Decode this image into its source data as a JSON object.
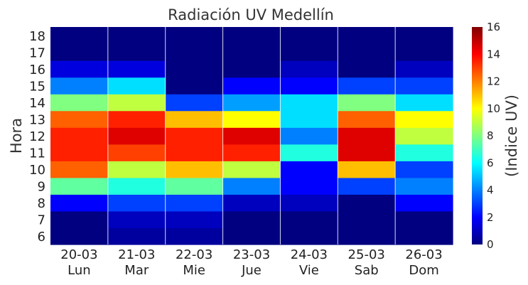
{
  "chart_data": {
    "type": "heatmap",
    "title": "Radiación UV Medellín",
    "ylabel": "Hora",
    "colorbar_label": "(Indice UV)",
    "colormap": "jet",
    "vmin": 0,
    "vmax": 16,
    "colorbar_ticks": [
      "0",
      "2",
      "4",
      "6",
      "8",
      "10",
      "12",
      "14",
      "16"
    ],
    "x_categories": [
      {
        "date": "20-03",
        "day": "Lun"
      },
      {
        "date": "21-03",
        "day": "Mar"
      },
      {
        "date": "22-03",
        "day": "Mie"
      },
      {
        "date": "23-03",
        "day": "Jue"
      },
      {
        "date": "24-03",
        "day": "Vie"
      },
      {
        "date": "25-03",
        "day": "Sab"
      },
      {
        "date": "26-03",
        "day": "Dom"
      }
    ],
    "y_categories": [
      "6",
      "7",
      "8",
      "9",
      "10",
      "11",
      "12",
      "13",
      "14",
      "15",
      "16",
      "17",
      "18"
    ],
    "values": [
      [
        0.0,
        0.5,
        0.5,
        0.0,
        0.0,
        0.0,
        0.0
      ],
      [
        0.0,
        1.0,
        1.0,
        0.0,
        0.0,
        0.0,
        0.0
      ],
      [
        2.0,
        3.0,
        3.0,
        1.0,
        1.0,
        0.0,
        2.0
      ],
      [
        7.5,
        6.5,
        7.5,
        4.0,
        2.0,
        3.0,
        4.0
      ],
      [
        12.5,
        9.0,
        11.0,
        9.0,
        2.0,
        11.0,
        3.0
      ],
      [
        13.5,
        13.0,
        13.5,
        13.5,
        6.5,
        14.5,
        6.5
      ],
      [
        13.5,
        14.5,
        13.5,
        14.5,
        4.0,
        14.5,
        9.0
      ],
      [
        12.5,
        13.5,
        11.0,
        10.0,
        5.5,
        12.5,
        10.0
      ],
      [
        8.0,
        9.0,
        3.0,
        4.5,
        5.5,
        8.0,
        5.5
      ],
      [
        4.0,
        5.5,
        0.0,
        2.0,
        2.0,
        3.0,
        3.0
      ],
      [
        1.5,
        1.5,
        0.0,
        0.0,
        1.0,
        0.0,
        1.0
      ],
      [
        0.0,
        0.0,
        0.0,
        0.0,
        0.0,
        0.0,
        0.0
      ],
      [
        0.0,
        0.0,
        0.0,
        0.0,
        0.0,
        0.0,
        0.0
      ]
    ]
  }
}
